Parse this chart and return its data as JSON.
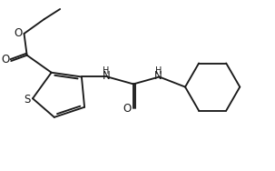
{
  "background": "#ffffff",
  "line_color": "#1a1a1a",
  "line_width": 1.35,
  "figsize": [
    3.03,
    1.88
  ],
  "dpi": 100,
  "xlim": [
    0.3,
    9.7
  ],
  "ylim": [
    0.5,
    6.0
  ],
  "font_size_atom": 8.5,
  "font_size_methyl": 7.5
}
